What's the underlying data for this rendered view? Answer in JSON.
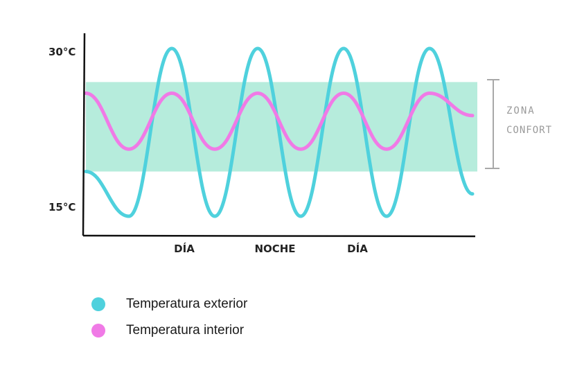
{
  "chart_data": {
    "type": "line",
    "y_ticks": [
      "30°C",
      "15°C"
    ],
    "ylim": [
      15,
      30
    ],
    "x_ticks": [
      "DÍA",
      "NOCHE",
      "DÍA"
    ],
    "comfort_zone": {
      "label_line1": "ZONA",
      "label_line2": "CONFORT",
      "range": [
        19,
        27
      ]
    },
    "series": [
      {
        "name": "Temperatura exterior",
        "color": "#4fd1dd",
        "x": [
          0,
          0.5,
          1.0,
          1.5,
          2.0,
          2.5,
          3.0,
          3.5,
          4.0,
          4.5
        ],
        "y": [
          19,
          15,
          30,
          15,
          30,
          15,
          30,
          15,
          30,
          17
        ]
      },
      {
        "name": "Temperatura interior",
        "color": "#f07ae6",
        "x": [
          0,
          0.5,
          1.0,
          1.5,
          2.0,
          2.5,
          3.0,
          3.5,
          4.0,
          4.5
        ],
        "y": [
          26,
          21,
          26,
          21,
          26,
          21,
          26,
          21,
          26,
          24
        ]
      }
    ]
  },
  "comfort_color": "#b6ecdc",
  "legend": [
    {
      "label": "Temperatura exterior",
      "color": "#4fd1dd"
    },
    {
      "label": "Temperatura interior",
      "color": "#f07ae6"
    }
  ]
}
